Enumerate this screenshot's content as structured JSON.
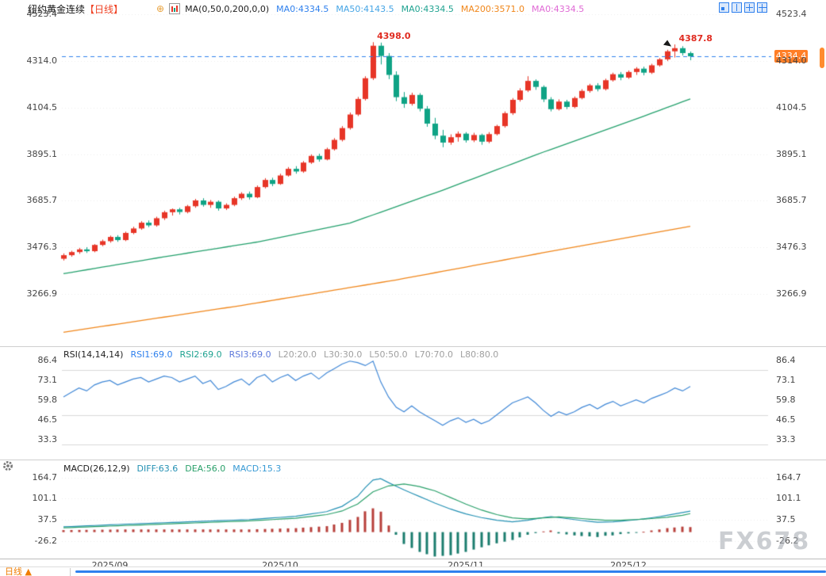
{
  "header": {
    "title": "纽约黄金连续",
    "timeframe_tag": "【日线】",
    "plus_icon": "⊕",
    "ma_formula": "MA(0,50,0,200,0,0)",
    "ma_values": [
      {
        "label": "MA0:4334.5",
        "color": "#2f80ed"
      },
      {
        "label": "MA50:4143.5",
        "color": "#46a5e5"
      },
      {
        "label": "MA0:4334.5",
        "color": "#20a391"
      },
      {
        "label": "MA200:3571.0",
        "color": "#f0861a"
      },
      {
        "label": "MA0:4334.5",
        "color": "#e06ad5"
      }
    ],
    "layout_icons": [
      {
        "name": "layout-1-icon"
      },
      {
        "name": "layout-2-icon"
      },
      {
        "name": "layout-3-icon"
      },
      {
        "name": "layout-4-icon"
      }
    ]
  },
  "price_marker": {
    "label": "4334.4",
    "bg": "#ff7e26"
  },
  "rsi_header": {
    "name": "RSI(14,14,14)",
    "values": [
      {
        "label": "RSI1:69.0",
        "color": "#2f80ed"
      },
      {
        "label": "RSI2:69.0",
        "color": "#20a391"
      },
      {
        "label": "RSI3:69.0",
        "color": "#5f7adb"
      }
    ],
    "levels": [
      {
        "label": "L20:20.0"
      },
      {
        "label": "L30:30.0"
      },
      {
        "label": "L50:50.0"
      },
      {
        "label": "L70:70.0"
      },
      {
        "label": "L80:80.0"
      }
    ],
    "level_color": "#a0a0a0"
  },
  "macd_header": {
    "name": "MACD(26,12,9)",
    "values": [
      {
        "label": "DIFF:63.6",
        "color": "#2591b4"
      },
      {
        "label": "DEA:56.0",
        "color": "#2aa06a"
      },
      {
        "label": "MACD:15.3",
        "color": "#3a9bd5"
      }
    ]
  },
  "footer": {
    "label": "日线 ▲"
  },
  "watermark": "FX678",
  "colors": {
    "up": "#e73527",
    "down": "#0fa385",
    "dashed_line": "#2f80ed",
    "grid": "#ececec",
    "rsi_level": "#d8d8d8"
  },
  "chart_data": [
    {
      "type": "candlestick",
      "title": "纽约黄金连续 日线",
      "y_tick_labels": [
        "4523.4",
        "4314.0",
        "4104.5",
        "3895.1",
        "3685.7",
        "3476.3",
        "3266.9"
      ],
      "y_tick_values": [
        4523.4,
        4314.0,
        4104.5,
        3895.1,
        3685.7,
        3476.3,
        3266.9
      ],
      "ylim": [
        3160,
        4560
      ],
      "x_labels": [
        "2025/09",
        "2025/10",
        "2025/11",
        "2025/12"
      ],
      "x_label_indices": [
        6,
        28,
        52,
        73
      ],
      "current_price": 4334.4,
      "current_price_label": "4334.4",
      "high_annotations": [
        {
          "text": "4398.0",
          "index": 40,
          "price": 4398.0
        },
        {
          "text": "4387.8",
          "index": 79,
          "price": 4387.8
        }
      ],
      "candles": [
        [
          3425,
          3449,
          3417,
          3441
        ],
        [
          3441,
          3461,
          3434,
          3455
        ],
        [
          3455,
          3474,
          3447,
          3467
        ],
        [
          3467,
          3477,
          3451,
          3459
        ],
        [
          3459,
          3491,
          3454,
          3487
        ],
        [
          3487,
          3511,
          3481,
          3504
        ],
        [
          3504,
          3529,
          3497,
          3523
        ],
        [
          3523,
          3531,
          3501,
          3509
        ],
        [
          3509,
          3547,
          3504,
          3541
        ],
        [
          3541,
          3569,
          3535,
          3561
        ],
        [
          3561,
          3594,
          3555,
          3587
        ],
        [
          3587,
          3597,
          3567,
          3575
        ],
        [
          3575,
          3614,
          3569,
          3607
        ],
        [
          3607,
          3641,
          3599,
          3634
        ],
        [
          3634,
          3651,
          3619,
          3647
        ],
        [
          3647,
          3654,
          3624,
          3635
        ],
        [
          3635,
          3667,
          3629,
          3661
        ],
        [
          3661,
          3694,
          3654,
          3687
        ],
        [
          3687,
          3697,
          3659,
          3667
        ],
        [
          3667,
          3689,
          3654,
          3681
        ],
        [
          3681,
          3687,
          3641,
          3651
        ],
        [
          3651,
          3674,
          3644,
          3667
        ],
        [
          3667,
          3704,
          3661,
          3697
        ],
        [
          3697,
          3724,
          3689,
          3717
        ],
        [
          3717,
          3727,
          3691,
          3701
        ],
        [
          3701,
          3754,
          3697,
          3747
        ],
        [
          3747,
          3787,
          3741,
          3779
        ],
        [
          3779,
          3789,
          3751,
          3761
        ],
        [
          3761,
          3807,
          3757,
          3799
        ],
        [
          3799,
          3837,
          3794,
          3829
        ],
        [
          3829,
          3841,
          3807,
          3817
        ],
        [
          3817,
          3864,
          3811,
          3857
        ],
        [
          3857,
          3894,
          3851,
          3887
        ],
        [
          3887,
          3897,
          3861,
          3871
        ],
        [
          3871,
          3924,
          3867,
          3917
        ],
        [
          3917,
          3967,
          3911,
          3959
        ],
        [
          3959,
          4021,
          3952,
          4012
        ],
        [
          4012,
          4082,
          4005,
          4073
        ],
        [
          4073,
          4152,
          4066,
          4143
        ],
        [
          4143,
          4245,
          4136,
          4236
        ],
        [
          4236,
          4398,
          4228,
          4382
        ],
        [
          4382,
          4396,
          4298,
          4336
        ],
        [
          4336,
          4349,
          4232,
          4251
        ],
        [
          4251,
          4267,
          4133,
          4151
        ],
        [
          4151,
          4174,
          4103,
          4121
        ],
        [
          4121,
          4171,
          4113,
          4161
        ],
        [
          4161,
          4169,
          4087,
          4099
        ],
        [
          4099,
          4111,
          4018,
          4032
        ],
        [
          4032,
          4058,
          3962,
          3978
        ],
        [
          3978,
          4004,
          3926,
          3947
        ],
        [
          3947,
          3984,
          3937,
          3971
        ],
        [
          3971,
          3997,
          3951,
          3987
        ],
        [
          3987,
          3994,
          3947,
          3957
        ],
        [
          3957,
          3991,
          3949,
          3981
        ],
        [
          3981,
          3987,
          3937,
          3951
        ],
        [
          3951,
          3994,
          3944,
          3985
        ],
        [
          3985,
          4027,
          3979,
          4021
        ],
        [
          4021,
          4087,
          4014,
          4079
        ],
        [
          4079,
          4147,
          4071,
          4139
        ],
        [
          4139,
          4191,
          4131,
          4181
        ],
        [
          4181,
          4245,
          4174,
          4224
        ],
        [
          4224,
          4231,
          4184,
          4197
        ],
        [
          4197,
          4204,
          4129,
          4141
        ],
        [
          4141,
          4151,
          4087,
          4097
        ],
        [
          4097,
          4141,
          4091,
          4131
        ],
        [
          4131,
          4139,
          4097,
          4107
        ],
        [
          4107,
          4154,
          4101,
          4147
        ],
        [
          4147,
          4187,
          4141,
          4179
        ],
        [
          4179,
          4211,
          4171,
          4204
        ],
        [
          4204,
          4214,
          4177,
          4187
        ],
        [
          4187,
          4234,
          4181,
          4227
        ],
        [
          4227,
          4261,
          4221,
          4254
        ],
        [
          4254,
          4264,
          4227,
          4239
        ],
        [
          4239,
          4271,
          4233,
          4264
        ],
        [
          4264,
          4286,
          4251,
          4279
        ],
        [
          4279,
          4288,
          4249,
          4261
        ],
        [
          4261,
          4301,
          4255,
          4294
        ],
        [
          4294,
          4327,
          4288,
          4321
        ],
        [
          4321,
          4364,
          4313,
          4357
        ],
        [
          4357,
          4387.8,
          4329,
          4371
        ],
        [
          4371,
          4380,
          4338,
          4349
        ],
        [
          4349,
          4356,
          4317,
          4334.4
        ]
      ],
      "overlays": [
        {
          "name": "MA50",
          "color": "#23a06c",
          "points": [
            [
              0,
              3358
            ],
            [
              12,
              3428
            ],
            [
              25,
              3500
            ],
            [
              37,
              3585
            ],
            [
              49,
              3733
            ],
            [
              62,
              3904
            ],
            [
              74,
              4053
            ],
            [
              81,
              4143
            ]
          ]
        },
        {
          "name": "MA200",
          "color": "#f0861a",
          "points": [
            [
              0,
              3095
            ],
            [
              23,
              3215
            ],
            [
              43,
              3330
            ],
            [
              64,
              3465
            ],
            [
              81,
              3571
            ]
          ]
        }
      ]
    },
    {
      "type": "line",
      "name": "RSI",
      "y_tick_labels": [
        "86.4",
        "73.1",
        "59.8",
        "46.5",
        "33.3"
      ],
      "y_tick_values": [
        86.4,
        73.1,
        59.8,
        46.5,
        33.3
      ],
      "levels": [
        80,
        50,
        30
      ],
      "color": "#3f87d6",
      "values": [
        62,
        65,
        68,
        66,
        70,
        72,
        73,
        70,
        72,
        74,
        75,
        72,
        74,
        76,
        75,
        72,
        74,
        76,
        71,
        73,
        67,
        69,
        72,
        74,
        70,
        75,
        77,
        72,
        75,
        77,
        73,
        76,
        78,
        74,
        78,
        81,
        84,
        86,
        85,
        83,
        86,
        72,
        62,
        55,
        52,
        56,
        52,
        49,
        46,
        43,
        46,
        48,
        45,
        47,
        44,
        46,
        50,
        54,
        58,
        60,
        62,
        58,
        53,
        49,
        52,
        50,
        52,
        55,
        57,
        54,
        57,
        59,
        56,
        58,
        60,
        58,
        61,
        63,
        65,
        68,
        66,
        69
      ]
    },
    {
      "type": "macd",
      "name": "MACD",
      "y_tick_labels": [
        "164.7",
        "101.1",
        "37.5",
        "-26.2"
      ],
      "y_tick_values": [
        164.7,
        101.1,
        37.5,
        -26.2
      ],
      "hist_scale": 2,
      "diff_points": [
        [
          0,
          16
        ],
        [
          8,
          24
        ],
        [
          16,
          31
        ],
        [
          24,
          38
        ],
        [
          30,
          48
        ],
        [
          34,
          62
        ],
        [
          36,
          78
        ],
        [
          38,
          108
        ],
        [
          39,
          135
        ],
        [
          40,
          158
        ],
        [
          41,
          162
        ],
        [
          42,
          150
        ],
        [
          44,
          128
        ],
        [
          46,
          108
        ],
        [
          48,
          88
        ],
        [
          50,
          70
        ],
        [
          52,
          55
        ],
        [
          54,
          44
        ],
        [
          56,
          36
        ],
        [
          58,
          31
        ],
        [
          60,
          36
        ],
        [
          62,
          44
        ],
        [
          63,
          47
        ],
        [
          65,
          41
        ],
        [
          67,
          35
        ],
        [
          69,
          30
        ],
        [
          71,
          31
        ],
        [
          73,
          35
        ],
        [
          75,
          40
        ],
        [
          77,
          47
        ],
        [
          79,
          55
        ],
        [
          81,
          63.6
        ]
      ],
      "dea_points": [
        [
          0,
          13
        ],
        [
          8,
          20
        ],
        [
          16,
          27
        ],
        [
          24,
          34
        ],
        [
          30,
          42
        ],
        [
          34,
          53
        ],
        [
          36,
          64
        ],
        [
          38,
          85
        ],
        [
          40,
          122
        ],
        [
          42,
          140
        ],
        [
          44,
          146
        ],
        [
          46,
          138
        ],
        [
          48,
          125
        ],
        [
          50,
          105
        ],
        [
          52,
          85
        ],
        [
          54,
          67
        ],
        [
          56,
          53
        ],
        [
          58,
          43
        ],
        [
          60,
          40
        ],
        [
          62,
          43
        ],
        [
          64,
          46
        ],
        [
          66,
          43
        ],
        [
          68,
          39
        ],
        [
          70,
          36
        ],
        [
          72,
          36
        ],
        [
          74,
          38
        ],
        [
          76,
          41
        ],
        [
          78,
          45
        ],
        [
          80,
          51
        ],
        [
          81,
          56
        ]
      ],
      "colors": {
        "diff": "#2591b4",
        "dea": "#2aa06a",
        "hist_pos": "#b8413c",
        "hist_neg": "#1b7d6e"
      }
    }
  ]
}
